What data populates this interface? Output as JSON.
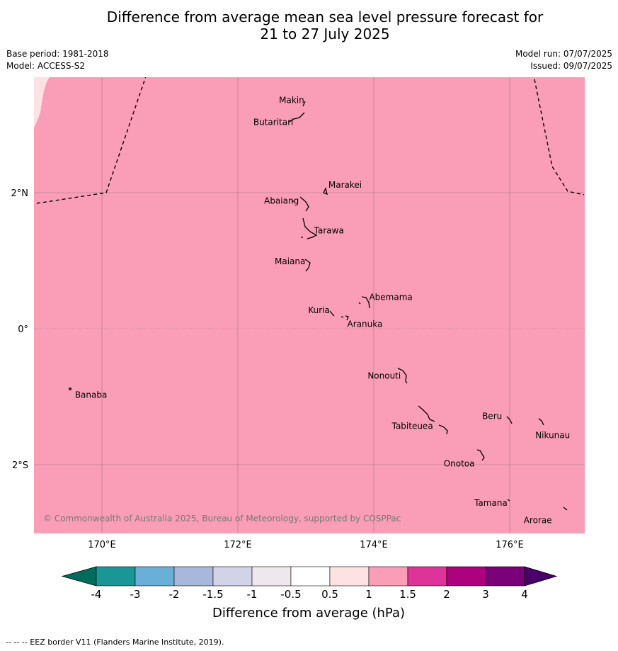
{
  "title_line1": "Difference from average mean sea level pressure forecast for",
  "title_line2": "21 to 27 July 2025",
  "base_period": "Base period: 1981-2018",
  "model": "Model: ACCESS-S2",
  "model_run": "Model run: 07/07/2025",
  "issued": "Issued: 09/07/2025",
  "copyright": "© Commonwealth of Australia 2025, Bureau of Meteorology, supported by COSPPac",
  "footer": "--  --  -- EEZ border V11 (Flanders Marine Institute, 2019).",
  "axes": {
    "lon_ticks": [
      "170°E",
      "172°E",
      "174°E",
      "176°E"
    ],
    "lat_ticks": [
      "2°N",
      "0°",
      "2°S"
    ]
  },
  "colorbar": {
    "label": "Difference from average (hPa)",
    "tick_labels": [
      "-4",
      "-3",
      "-2",
      "-1.5",
      "-1",
      "-0.5",
      "0.5",
      "1",
      "1.5",
      "2",
      "3",
      "4"
    ],
    "colors": [
      "#1a9697",
      "#6ab0d6",
      "#a8b7dc",
      "#d3d3e8",
      "#efe7ee",
      "#ffffff",
      "#fde2e2",
      "#fa9db6",
      "#df3497",
      "#ad017e",
      "#7a0177"
    ],
    "under_color": "#016c59",
    "over_color": "#49006a"
  },
  "field": {
    "dominant_range_hPa": "1 to 1.5",
    "dominant_color": "#fa9db6",
    "nw_corner_range_hPa": "0.5 to 1",
    "nw_corner_color": "#fde2e2"
  },
  "places": [
    {
      "name": "Makin",
      "lon": 172.97,
      "lat": 3.32
    },
    {
      "name": "Butaritari",
      "lon": 172.78,
      "lat": 3.08
    },
    {
      "name": "Marakei",
      "lon": 173.27,
      "lat": 2.01
    },
    {
      "name": "Abaiang",
      "lon": 172.97,
      "lat": 1.84
    },
    {
      "name": "Tarawa",
      "lon": 173.08,
      "lat": 1.38
    },
    {
      "name": "Maiana",
      "lon": 173.0,
      "lat": 0.95
    },
    {
      "name": "Abemama",
      "lon": 173.88,
      "lat": 0.4
    },
    {
      "name": "Kuria",
      "lon": 173.41,
      "lat": 0.23
    },
    {
      "name": "Aranuka",
      "lon": 173.62,
      "lat": 0.17
    },
    {
      "name": "Nonouti",
      "lon": 174.42,
      "lat": -0.65
    },
    {
      "name": "Banaba",
      "lon": 169.54,
      "lat": -0.87
    },
    {
      "name": "Tabiteuea",
      "lon": 174.85,
      "lat": -1.35
    },
    {
      "name": "Beru",
      "lon": 175.98,
      "lat": -1.33
    },
    {
      "name": "Nikunau",
      "lon": 176.45,
      "lat": -1.35
    },
    {
      "name": "Onotoa",
      "lon": 175.57,
      "lat": -1.83
    },
    {
      "name": "Tamana",
      "lon": 175.98,
      "lat": -2.5
    },
    {
      "name": "Arorae",
      "lon": 176.82,
      "lat": -2.64
    }
  ]
}
